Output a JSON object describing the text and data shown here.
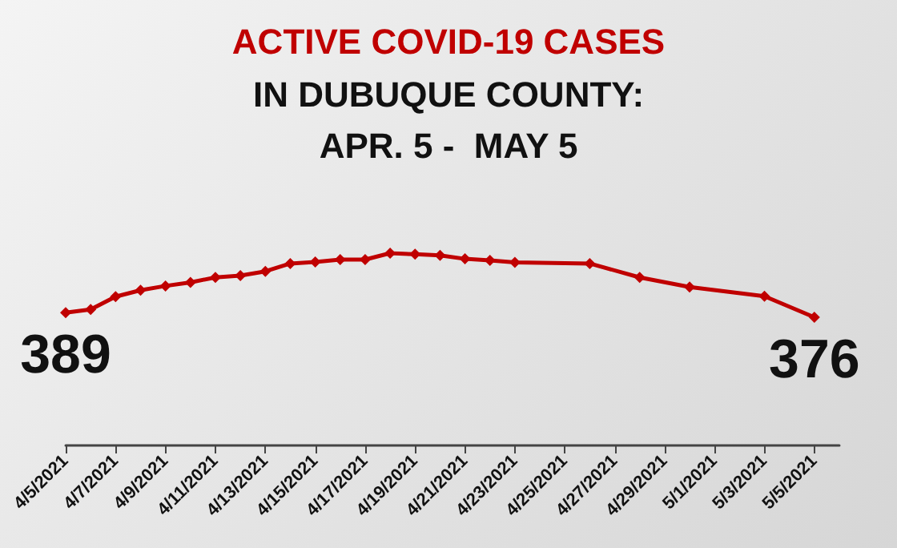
{
  "chart_data": {
    "type": "line",
    "title": "ACTIVE COVID-19 CASES",
    "subtitle": "IN DUBUQUE COUNTY:\nAPR. 5 -  MAY 5",
    "x": [
      "2021-04-05",
      "2021-04-06",
      "2021-04-07",
      "2021-04-08",
      "2021-04-09",
      "2021-04-10",
      "2021-04-11",
      "2021-04-12",
      "2021-04-13",
      "2021-04-14",
      "2021-04-15",
      "2021-04-16",
      "2021-04-17",
      "2021-04-18",
      "2021-04-19",
      "2021-04-20",
      "2021-04-21",
      "2021-04-22",
      "2021-04-23",
      "2021-04-26",
      "2021-04-28",
      "2021-04-30",
      "2021-05-03",
      "2021-05-05"
    ],
    "series": [
      {
        "color": "#c00000",
        "values": [
          389,
          398,
          434,
          452,
          464,
          474,
          488,
          493,
          505,
          527,
          531,
          538,
          538,
          556,
          553,
          550,
          540,
          536,
          530,
          527,
          488,
          461,
          435,
          376
        ],
        "value_labels": [
          "389",
          null,
          null,
          null,
          null,
          null,
          null,
          null,
          null,
          null,
          null,
          null,
          null,
          null,
          null,
          null,
          null,
          null,
          null,
          null,
          null,
          null,
          null,
          "376"
        ]
      }
    ],
    "xlim": [
      "2021-04-05",
      "2021-05-06"
    ],
    "xticks": [
      {
        "value": "2021-04-05",
        "label": "4/5/2021"
      },
      {
        "value": "2021-04-07",
        "label": "4/7/2021"
      },
      {
        "value": "2021-04-09",
        "label": "4/9/2021"
      },
      {
        "value": "2021-04-11",
        "label": "4/11/2021"
      },
      {
        "value": "2021-04-13",
        "label": "4/13/2021"
      },
      {
        "value": "2021-04-15",
        "label": "4/15/2021"
      },
      {
        "value": "2021-04-17",
        "label": "4/17/2021"
      },
      {
        "value": "2021-04-19",
        "label": "4/19/2021"
      },
      {
        "value": "2021-04-21",
        "label": "4/21/2021"
      },
      {
        "value": "2021-04-23",
        "label": "4/23/2021"
      },
      {
        "value": "2021-04-25",
        "label": "4/25/2021"
      },
      {
        "value": "2021-04-27",
        "label": "4/27/2021"
      },
      {
        "value": "2021-04-29",
        "label": "4/29/2021"
      },
      {
        "value": "2021-05-01",
        "label": "5/1/2021"
      },
      {
        "value": "2021-05-03",
        "label": "5/3/2021"
      },
      {
        "value": "2021-05-05",
        "label": "5/5/2021"
      }
    ],
    "tick_labels": "x",
    "grid": false,
    "marker": "diamond",
    "line_style": "solid"
  }
}
